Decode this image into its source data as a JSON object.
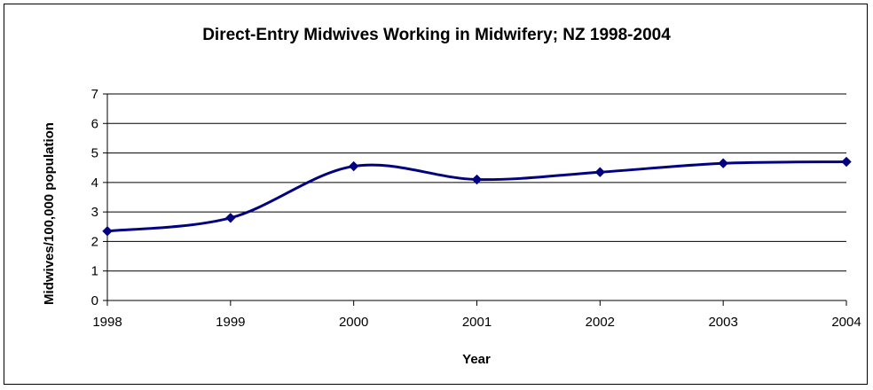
{
  "chart_data": {
    "type": "line",
    "title": "Direct-Entry Midwives Working in Midwifery; NZ 1998-2004",
    "xlabel": "Year",
    "ylabel": "Midwives/100,000 population",
    "ylim": [
      0,
      7
    ],
    "yticks": [
      "0",
      "1",
      "2",
      "3",
      "4",
      "5",
      "6",
      "7"
    ],
    "xlim": [
      1998,
      2004
    ],
    "xticks": [
      "1998",
      "1999",
      "2000",
      "2001",
      "2002",
      "2003",
      "2004"
    ],
    "grid": "horizontal",
    "legend": "none",
    "line_color": "#000080",
    "x": [
      1998,
      1999,
      2000,
      2001,
      2002,
      2003,
      2004
    ],
    "values": [
      2.35,
      2.8,
      4.55,
      4.1,
      4.35,
      4.65,
      4.7
    ]
  }
}
